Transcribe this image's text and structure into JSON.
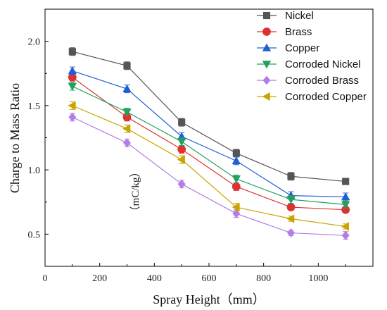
{
  "chart_data": {
    "type": "line",
    "xlabel": "Spray Height（mm）",
    "ylabel": "Charge to Mass Ratio",
    "unit_label": "（mC/kg）",
    "xlim": [
      0,
      1200
    ],
    "ylim": [
      0.25,
      2.25
    ],
    "x_ticks": [
      0,
      200,
      400,
      600,
      800,
      1000
    ],
    "y_ticks": [
      0.5,
      1.0,
      1.5,
      2.0
    ],
    "x_tick_labels": [
      "0",
      "200",
      "400",
      "600",
      "800",
      "1000"
    ],
    "y_tick_labels": [
      "0.5",
      "1.0",
      "1.5",
      "2.0"
    ],
    "x": [
      100,
      300,
      500,
      700,
      900,
      1100
    ],
    "legend_position": "top-right",
    "grid": false,
    "series": [
      {
        "name": "Nickel",
        "color": "#555555",
        "marker": "square",
        "values": [
          1.92,
          1.81,
          1.37,
          1.13,
          0.95,
          0.91
        ],
        "errors": [
          0.03,
          0.03,
          0.03,
          0.03,
          0.03,
          0.02
        ]
      },
      {
        "name": "Brass",
        "color": "#e03030",
        "marker": "circle",
        "values": [
          1.72,
          1.41,
          1.16,
          0.87,
          0.71,
          0.69
        ],
        "errors": [
          0.03,
          0.03,
          0.03,
          0.03,
          0.02,
          0.02
        ]
      },
      {
        "name": "Copper",
        "color": "#1f5fd6",
        "marker": "triangle-up",
        "values": [
          1.77,
          1.63,
          1.26,
          1.07,
          0.8,
          0.79
        ],
        "errors": [
          0.03,
          0.03,
          0.03,
          0.03,
          0.03,
          0.03
        ]
      },
      {
        "name": "Corroded Nickel",
        "color": "#22a060",
        "marker": "triangle-down",
        "values": [
          1.65,
          1.45,
          1.22,
          0.93,
          0.77,
          0.73
        ],
        "errors": [
          0.03,
          0.03,
          0.03,
          0.03,
          0.03,
          0.03
        ]
      },
      {
        "name": "Corroded Brass",
        "color": "#b27ee6",
        "marker": "diamond",
        "values": [
          1.41,
          1.21,
          0.89,
          0.66,
          0.51,
          0.49
        ],
        "errors": [
          0.03,
          0.03,
          0.03,
          0.03,
          0.02,
          0.03
        ]
      },
      {
        "name": "Corroded Copper",
        "color": "#c8a400",
        "marker": "triangle-left",
        "values": [
          1.5,
          1.32,
          1.08,
          0.71,
          0.62,
          0.56
        ],
        "errors": [
          0.03,
          0.03,
          0.03,
          0.03,
          0.02,
          0.02
        ]
      }
    ]
  }
}
